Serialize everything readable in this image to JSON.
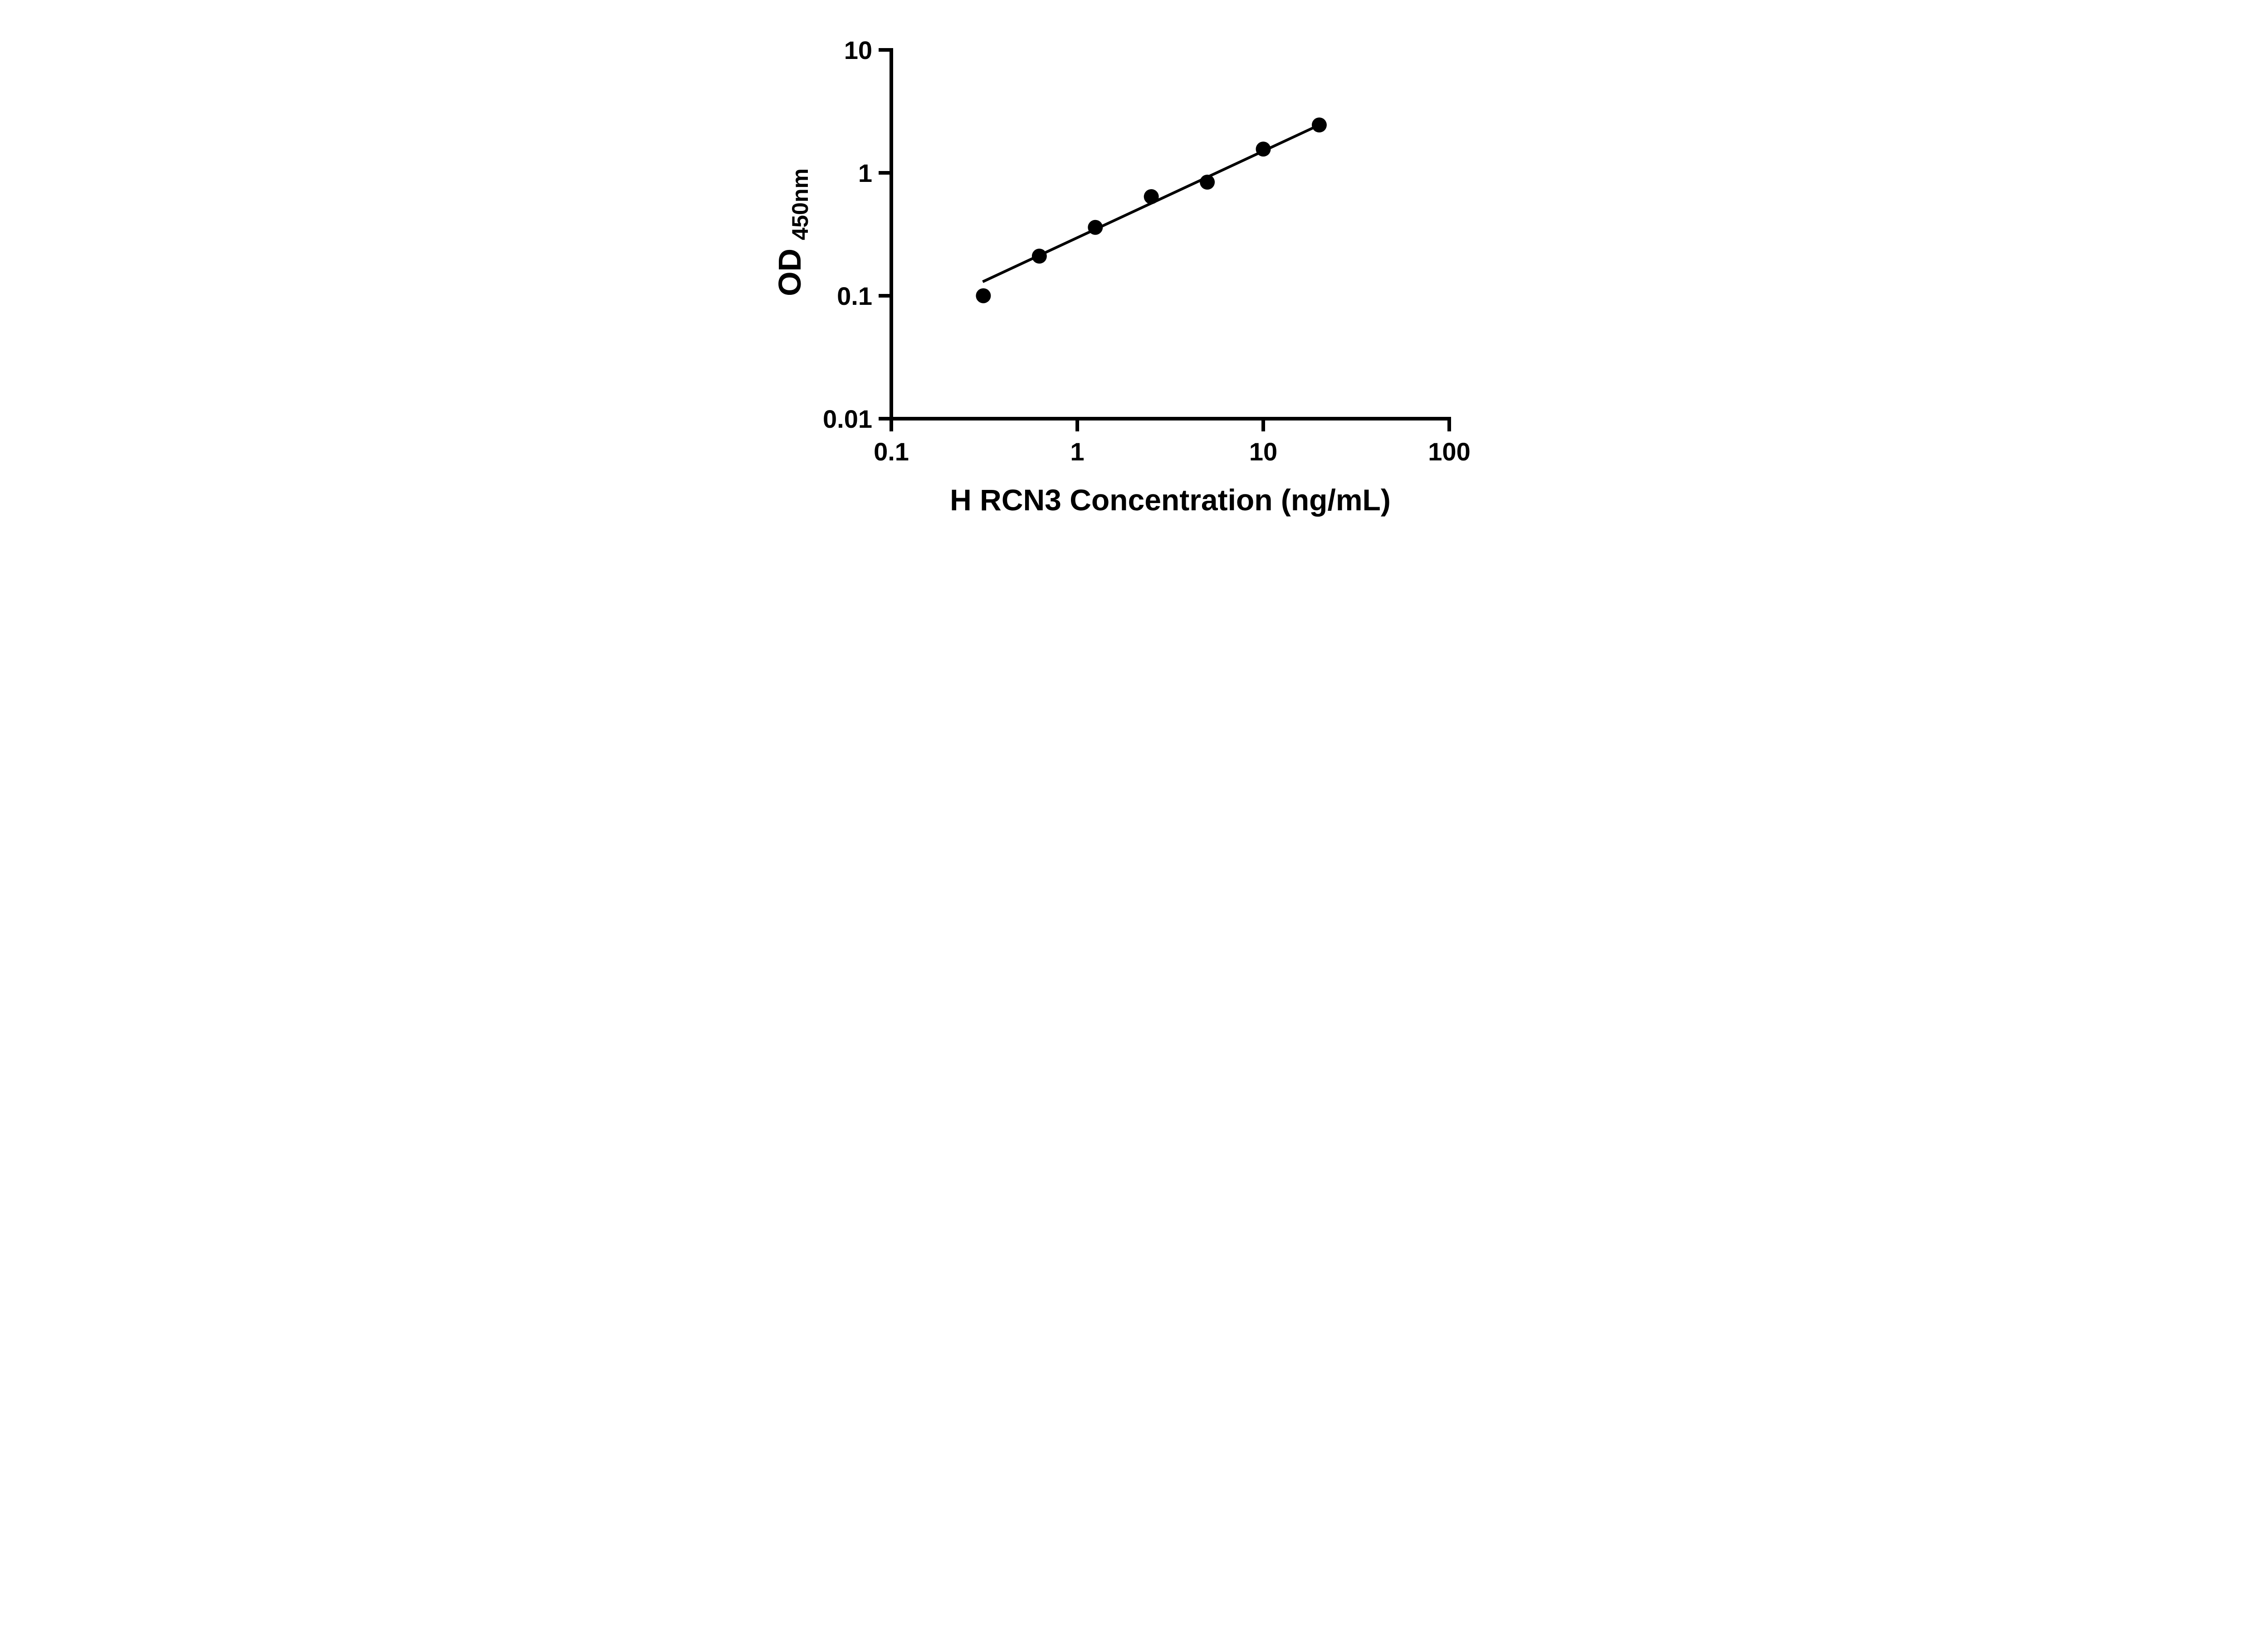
{
  "chart_data": {
    "type": "scatter",
    "title": "",
    "xlabel": "H RCN3 Concentration (ng/mL)",
    "ylabel": "OD",
    "ylabel_sub": "450nm",
    "x_scale": "log",
    "y_scale": "log",
    "xlim": [
      0.1,
      100
    ],
    "ylim": [
      0.01,
      10
    ],
    "x_ticks": [
      0.1,
      1,
      10,
      100
    ],
    "x_tick_labels": [
      "0.1",
      "1",
      "10",
      "100"
    ],
    "y_ticks": [
      0.01,
      0.1,
      1,
      10
    ],
    "y_tick_labels": [
      "0.01",
      "0.1",
      "1",
      "10"
    ],
    "grid": false,
    "legend": "none",
    "marker_color": "#000000",
    "line_color": "#000000",
    "series": [
      {
        "name": "fit-line",
        "type": "line",
        "color": "#000000",
        "x": [
          0.31,
          20
        ],
        "y": [
          0.13,
          2.45
        ]
      },
      {
        "name": "standard-curve-points",
        "type": "scatter",
        "marker": "circle",
        "color": "#000000",
        "x": [
          0.3125,
          0.625,
          1.25,
          2.5,
          5,
          10,
          20
        ],
        "y": [
          0.1,
          0.21,
          0.36,
          0.64,
          0.84,
          1.56,
          2.45
        ]
      }
    ]
  }
}
